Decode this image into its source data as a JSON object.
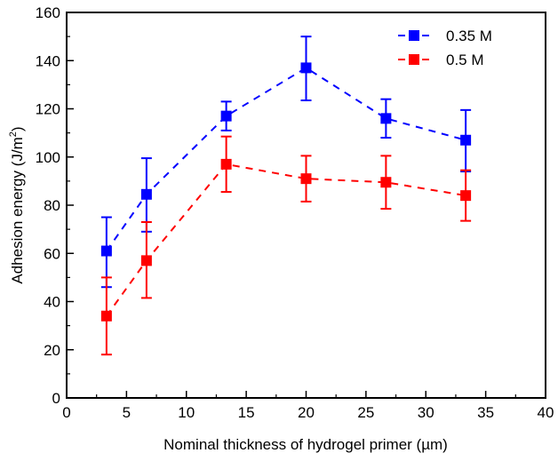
{
  "chart_data": {
    "type": "line",
    "title": "",
    "xlabel": "Nominal thickness of hydrogel primer (µm)",
    "ylabel_main": "Adhesion energy (J/m",
    "ylabel_sup": "2",
    "ylabel_close": ")",
    "xlim": [
      0,
      40
    ],
    "ylim": [
      0,
      160
    ],
    "xticks": [
      0,
      5,
      10,
      15,
      20,
      25,
      30,
      35,
      40
    ],
    "yticks": [
      0,
      20,
      40,
      60,
      80,
      100,
      120,
      140,
      160
    ],
    "xtick_labels": [
      "0",
      "5",
      "10",
      "15",
      "20",
      "25",
      "30",
      "35",
      "40"
    ],
    "ytick_labels": [
      "0",
      "20",
      "40",
      "60",
      "80",
      "100",
      "120",
      "140",
      "160"
    ],
    "grid": false,
    "legend_position": "top-right",
    "series": [
      {
        "name": "0.35 M",
        "color": "#0000ff",
        "marker": "square",
        "line_style": "dashed",
        "x": [
          3.33,
          6.67,
          13.33,
          20,
          26.67,
          33.33
        ],
        "y": [
          61,
          84.5,
          117,
          137,
          116,
          107
        ],
        "err_low": [
          46,
          69,
          111,
          123.5,
          108,
          94
        ],
        "err_high": [
          75,
          99.5,
          123,
          150,
          124,
          119.5
        ]
      },
      {
        "name": "0.5 M",
        "color": "#ff0000",
        "marker": "square",
        "line_style": "dashed",
        "x": [
          3.33,
          6.67,
          13.33,
          20,
          26.67,
          33.33
        ],
        "y": [
          34,
          57,
          97,
          91,
          89.5,
          84
        ],
        "err_low": [
          18,
          41.5,
          85.5,
          81.5,
          78.5,
          73.5
        ],
        "err_high": [
          50,
          73,
          108.5,
          100.5,
          100.5,
          94.5
        ]
      }
    ]
  }
}
